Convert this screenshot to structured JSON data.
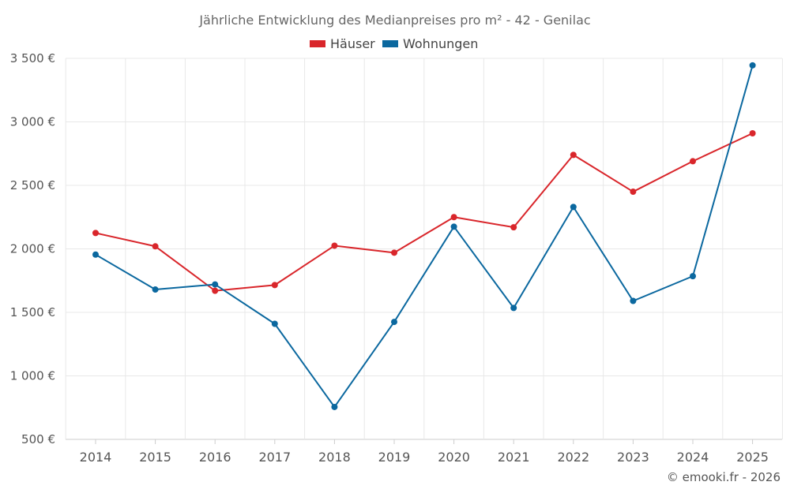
{
  "chart_data": {
    "type": "line",
    "title": "Jährliche Entwicklung des Medianpreises pro m² - 42 - Genilac",
    "categories": [
      "2014",
      "2015",
      "2016",
      "2017",
      "2018",
      "2019",
      "2020",
      "2021",
      "2022",
      "2023",
      "2024",
      "2025"
    ],
    "series": [
      {
        "name": "Häuser",
        "color": "#d9262b",
        "values": [
          2125,
          2020,
          1670,
          1715,
          2025,
          1970,
          2250,
          2170,
          2740,
          2450,
          2690,
          2910
        ]
      },
      {
        "name": "Wohnungen",
        "color": "#0b689f",
        "values": [
          1955,
          1680,
          1720,
          1410,
          755,
          1425,
          2175,
          1535,
          2330,
          1590,
          1785,
          3445
        ]
      }
    ],
    "ylim": [
      500,
      3500
    ],
    "yticks": [
      500,
      1000,
      1500,
      2000,
      2500,
      3000,
      3500
    ],
    "ytick_labels": [
      "500 €",
      "1 000 €",
      "1 500 €",
      "2 000 €",
      "2 500 €",
      "3 000 €",
      "3 500 €"
    ],
    "xlabel": "",
    "ylabel": "",
    "grid": true,
    "legend_position": "top-center"
  },
  "credit": "© emooki.fr - 2026"
}
